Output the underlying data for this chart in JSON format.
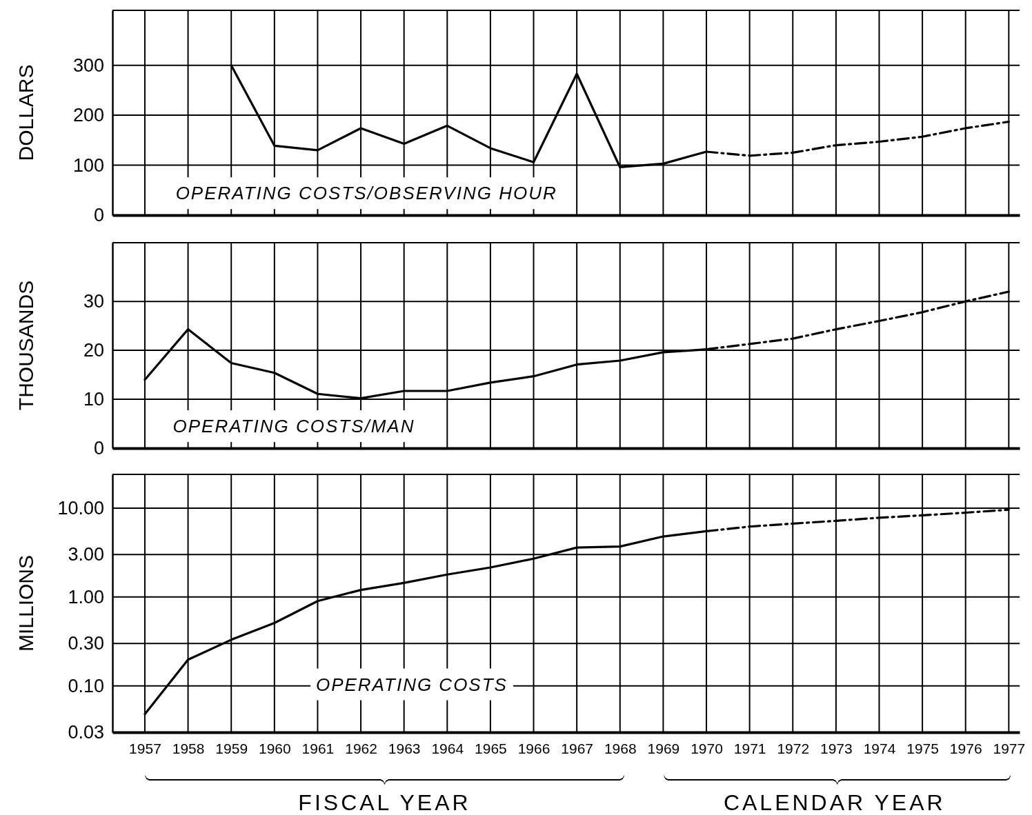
{
  "chart_data": [
    {
      "type": "line",
      "ylabel": "DOLLARS",
      "annotations": [
        "OPERATING COSTS/OBSERVING HOUR"
      ],
      "xlim": [
        1956.25,
        1977.25
      ],
      "xticks": [
        1957,
        1958,
        1959,
        1960,
        1961,
        1962,
        1963,
        1964,
        1965,
        1966,
        1967,
        1968,
        1969,
        1970,
        1971,
        1972,
        1973,
        1974,
        1975,
        1976,
        1977
      ],
      "ylim": [
        0,
        410
      ],
      "yticks": [
        0,
        100,
        200,
        300
      ],
      "grid": true,
      "tick_labels": "y",
      "marker": "none",
      "series": [
        {
          "color": "#000000",
          "line_style": "solid",
          "x": [
            1959,
            1960,
            1961,
            1962,
            1963,
            1964,
            1965,
            1966,
            1967,
            1968,
            1969,
            1970
          ],
          "values": [
            300,
            139,
            130,
            174,
            143,
            179,
            134,
            106,
            283,
            96,
            103,
            127
          ]
        },
        {
          "color": "#000000",
          "line_style": "dashed",
          "x": [
            1970,
            1971,
            1972,
            1973,
            1974,
            1975,
            1976,
            1977
          ],
          "values": [
            127,
            119,
            125,
            140,
            147,
            157,
            174,
            187
          ]
        }
      ]
    },
    {
      "type": "line",
      "ylabel": "THOUSANDS",
      "annotations": [
        "OPERATING COSTS/MAN"
      ],
      "xlim": [
        1956.25,
        1977.25
      ],
      "xticks": [
        1957,
        1958,
        1959,
        1960,
        1961,
        1962,
        1963,
        1964,
        1965,
        1966,
        1967,
        1968,
        1969,
        1970,
        1971,
        1972,
        1973,
        1974,
        1975,
        1976,
        1977
      ],
      "ylim": [
        0,
        42
      ],
      "yticks": [
        0,
        10,
        20,
        30
      ],
      "grid": true,
      "tick_labels": "y",
      "marker": "none",
      "series": [
        {
          "color": "#000000",
          "line_style": "solid",
          "x": [
            1957,
            1958,
            1959,
            1960,
            1961,
            1962,
            1963,
            1964,
            1965,
            1966,
            1967,
            1968,
            1969,
            1970
          ],
          "values": [
            14.0,
            24.3,
            17.4,
            15.4,
            11.1,
            10.2,
            11.7,
            11.7,
            13.4,
            14.7,
            17.1,
            17.9,
            19.6,
            20.2
          ]
        },
        {
          "color": "#000000",
          "line_style": "dashed",
          "x": [
            1970,
            1971,
            1972,
            1973,
            1974,
            1975,
            1976,
            1977
          ],
          "values": [
            20.2,
            21.3,
            22.4,
            24.3,
            26.0,
            27.8,
            30.0,
            32.0
          ]
        }
      ]
    },
    {
      "type": "line",
      "ylabel": "MILLIONS",
      "annotations": [
        "OPERATING COSTS",
        "FISCAL YEAR",
        "CALENDAR YEAR"
      ],
      "log": "y",
      "xlim": [
        1956.25,
        1977.25
      ],
      "xticks": [
        1957,
        1958,
        1959,
        1960,
        1961,
        1962,
        1963,
        1964,
        1965,
        1966,
        1967,
        1968,
        1969,
        1970,
        1971,
        1972,
        1973,
        1974,
        1975,
        1976,
        1977
      ],
      "ylim": [
        0.03,
        24
      ],
      "yticks": [
        {
          "value": 0.03,
          "label": "0.03"
        },
        {
          "value": 0.1,
          "label": "0.10"
        },
        {
          "value": 0.3,
          "label": "0.30"
        },
        {
          "value": 1,
          "label": "1.00"
        },
        {
          "value": 3,
          "label": "3.00"
        },
        {
          "value": 10,
          "label": "10.00"
        }
      ],
      "grid": true,
      "marker": "none",
      "series": [
        {
          "color": "#000000",
          "line_style": "solid",
          "x": [
            1957,
            1958,
            1959,
            1960,
            1961,
            1962,
            1963,
            1964,
            1965,
            1966,
            1967,
            1968,
            1969,
            1970
          ],
          "values": [
            0.048,
            0.197,
            0.33,
            0.51,
            0.9,
            1.2,
            1.44,
            1.79,
            2.15,
            2.7,
            3.6,
            3.7,
            4.8,
            5.5
          ]
        },
        {
          "color": "#000000",
          "line_style": "dashed",
          "x": [
            1970,
            1971,
            1972,
            1973,
            1974,
            1975,
            1976,
            1977
          ],
          "values": [
            5.5,
            6.2,
            6.7,
            7.2,
            7.8,
            8.3,
            8.9,
            9.6
          ]
        }
      ]
    }
  ]
}
